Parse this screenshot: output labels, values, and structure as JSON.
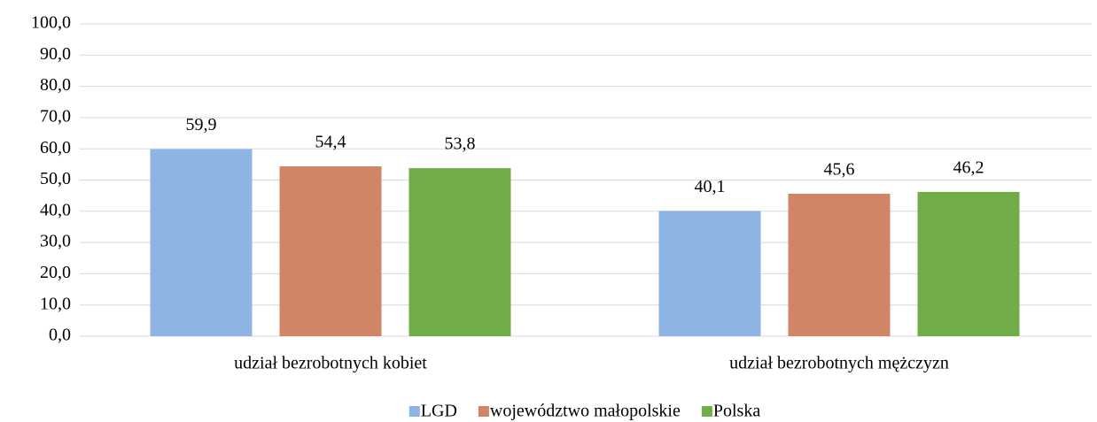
{
  "chart_data": {
    "type": "bar",
    "categories": [
      "udział bezrobotnych kobiet",
      "udział bezrobotnych mężczyzn"
    ],
    "series": [
      {
        "name": "LGD",
        "color": "#8eb4e3",
        "values": [
          59.9,
          40.1
        ],
        "value_labels": [
          "59,9",
          "40,1"
        ]
      },
      {
        "name": "województwo małopolskie",
        "color": "#cf8566",
        "values": [
          54.4,
          45.6
        ],
        "value_labels": [
          "54,4",
          "45,6"
        ]
      },
      {
        "name": "Polska",
        "color": "#70ad47",
        "values": [
          53.8,
          46.2
        ],
        "value_labels": [
          "53,8",
          "46,2"
        ]
      }
    ],
    "ylim": [
      0,
      100
    ],
    "yticks": [
      {
        "value": 0,
        "label": "0,0"
      },
      {
        "value": 10,
        "label": "10,0"
      },
      {
        "value": 20,
        "label": "20,0"
      },
      {
        "value": 30,
        "label": "30,0"
      },
      {
        "value": 40,
        "label": "40,0"
      },
      {
        "value": 50,
        "label": "50,0"
      },
      {
        "value": 60,
        "label": "60,0"
      },
      {
        "value": 70,
        "label": "70,0"
      },
      {
        "value": 80,
        "label": "80,0"
      },
      {
        "value": 90,
        "label": "90,0"
      },
      {
        "value": 100,
        "label": "100,0"
      }
    ],
    "grid": true,
    "legend": "bottom"
  }
}
